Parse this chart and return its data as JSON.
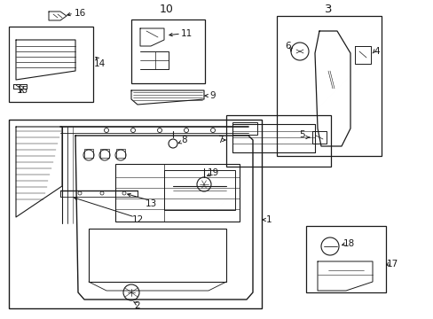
{
  "bg_color": "#ffffff",
  "line_color": "#1a1a1a",
  "fig_width": 4.89,
  "fig_height": 3.6,
  "dpi": 100,
  "label_fontsize": 7.5,
  "title_fontsize": 8.5
}
